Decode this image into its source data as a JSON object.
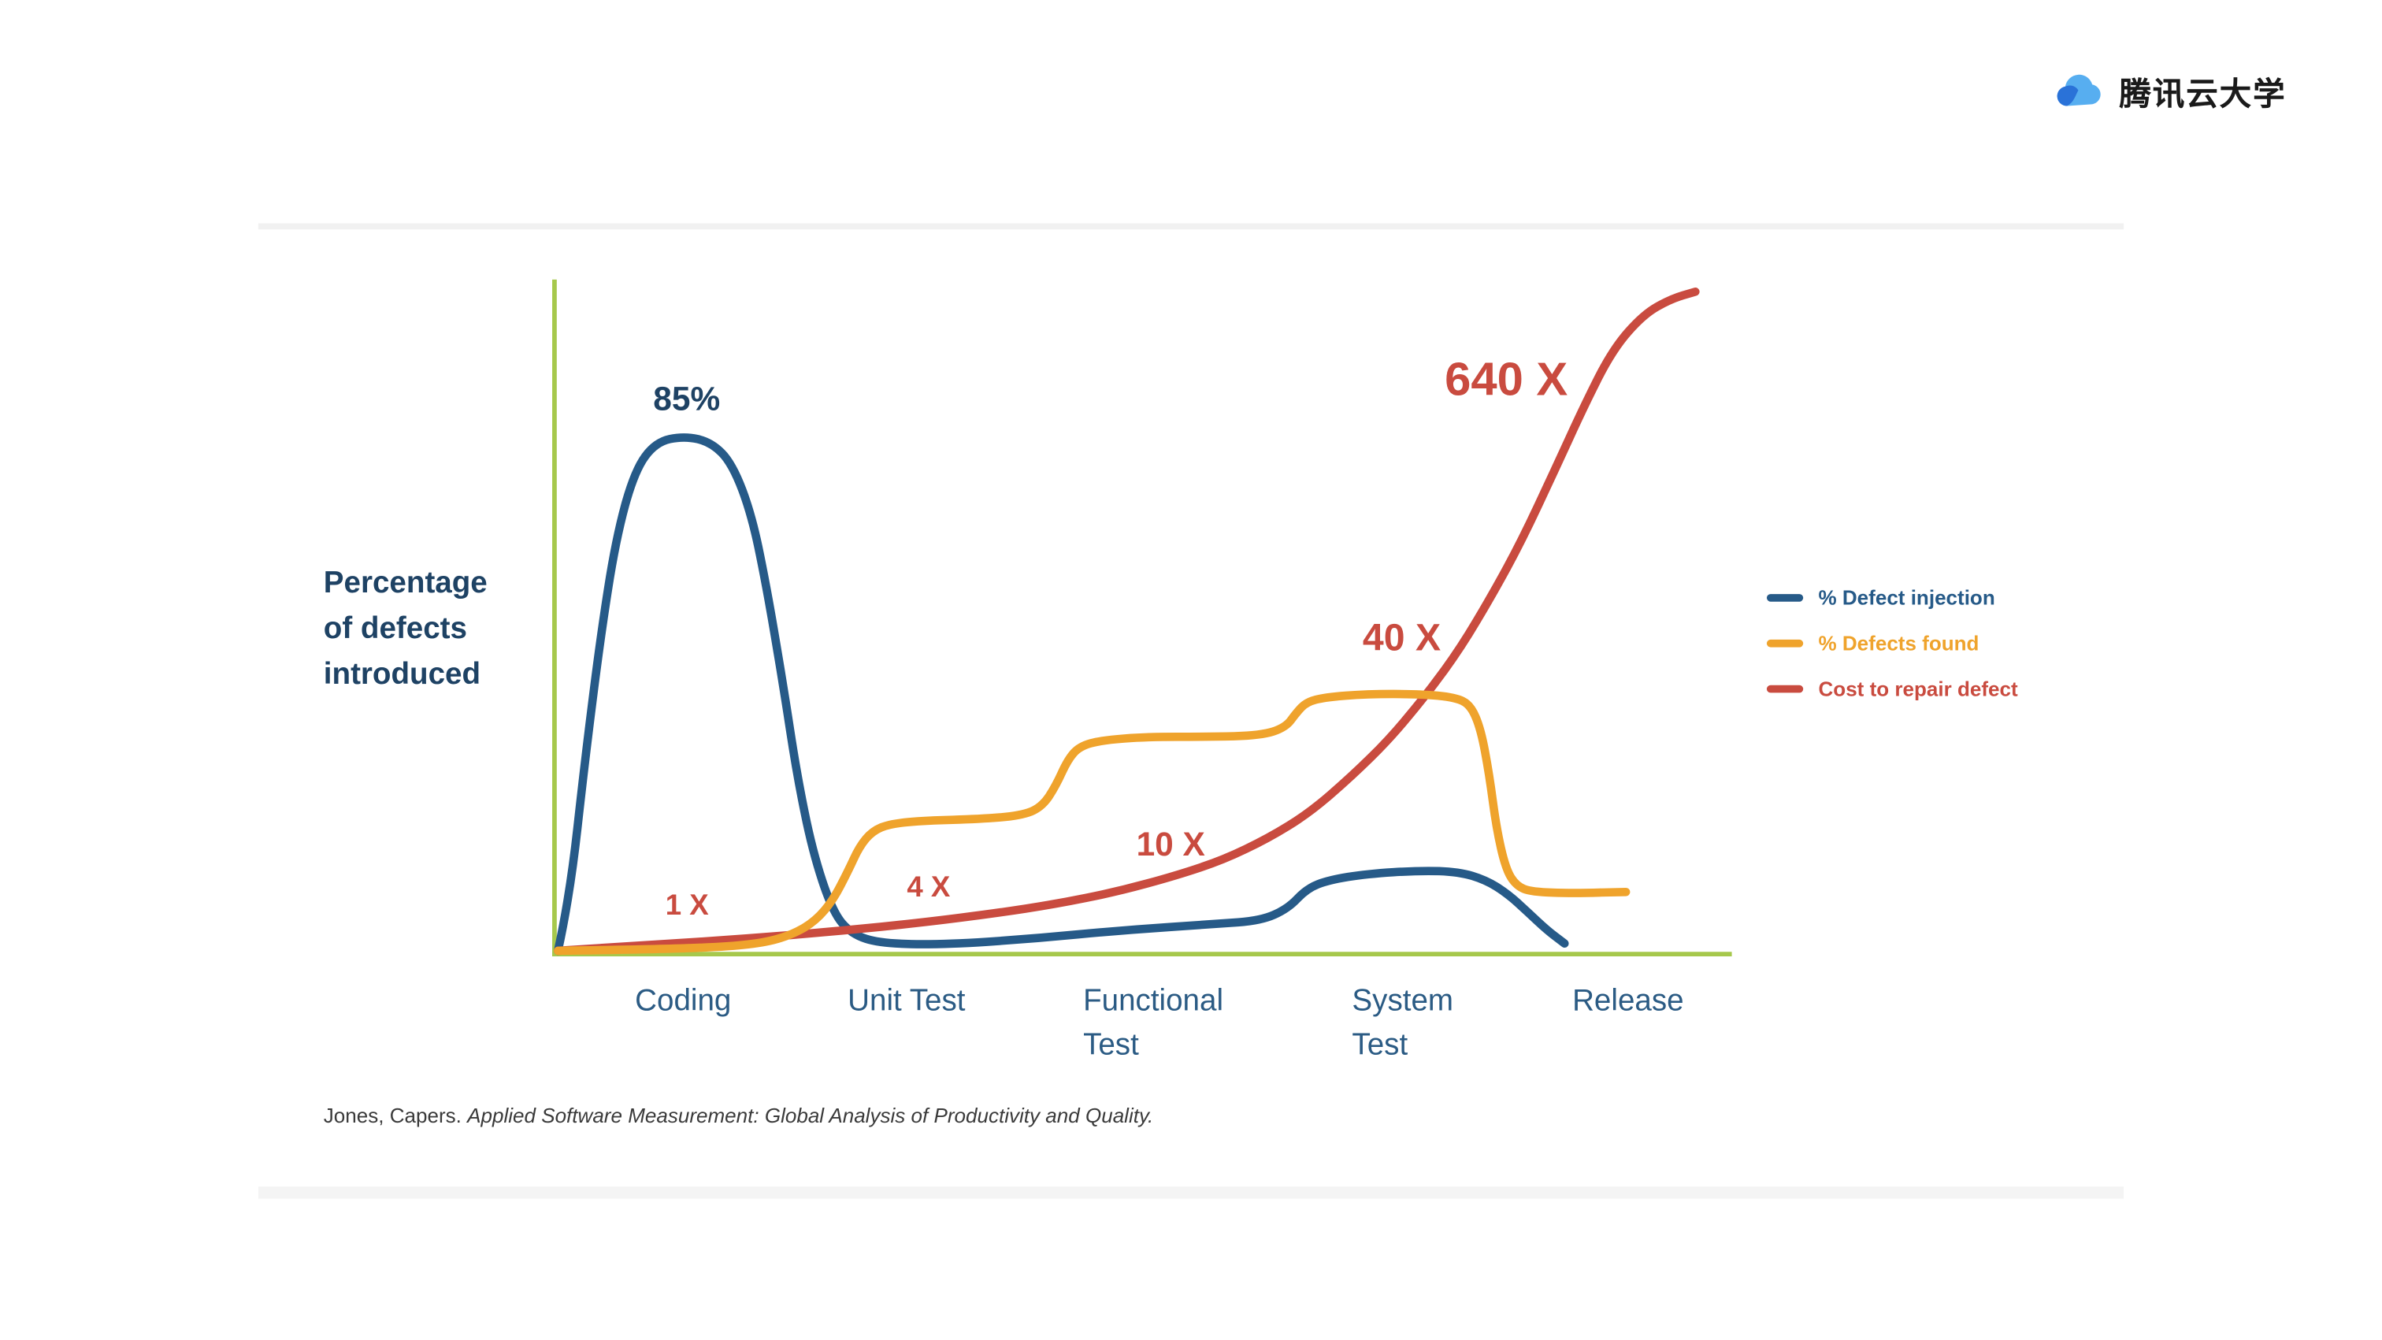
{
  "header": {
    "logo_text": "腾讯云大学"
  },
  "chart_data": {
    "type": "line",
    "title": "",
    "ylabel": "Percentage of defects introduced",
    "ylabel_lines": [
      "Percentage",
      "of defects",
      "introduced"
    ],
    "categories": [
      "Coding",
      "Unit Test",
      "Functional Test",
      "System Test",
      "Release"
    ],
    "axis_color": "#a6c84c",
    "grid": false,
    "legend_position": "right",
    "annotations": [
      {
        "id": "peak-injection",
        "text": "85%",
        "value": 85,
        "unit": "%",
        "series": "% Defect injection",
        "phase": "Coding",
        "color": "#1e4264"
      },
      {
        "id": "cost-1x",
        "text": "1 X",
        "value": 1,
        "unit": "X",
        "series": "Cost to repair defect",
        "phase": "Coding",
        "color": "#c94b3f"
      },
      {
        "id": "cost-4x",
        "text": "4 X",
        "value": 4,
        "unit": "X",
        "series": "Cost to repair defect",
        "phase": "Unit Test",
        "color": "#c94b3f"
      },
      {
        "id": "cost-10x",
        "text": "10 X",
        "value": 10,
        "unit": "X",
        "series": "Cost to repair defect",
        "phase": "Functional Test",
        "color": "#c94b3f"
      },
      {
        "id": "cost-40x",
        "text": "40 X",
        "value": 40,
        "unit": "X",
        "series": "Cost to repair defect",
        "phase": "System Test",
        "color": "#c94b3f"
      },
      {
        "id": "cost-640x",
        "text": "640 X",
        "value": 640,
        "unit": "X",
        "series": "Cost to repair defect",
        "phase": "Release",
        "color": "#c94b3f"
      }
    ],
    "series": [
      {
        "name": "% Defect injection",
        "color": "#265a88",
        "points": [
          [
            0.003,
            0.005
          ],
          [
            0.013,
            0.086
          ],
          [
            0.026,
            0.291
          ],
          [
            0.039,
            0.473
          ],
          [
            0.052,
            0.62
          ],
          [
            0.068,
            0.723
          ],
          [
            0.086,
            0.766
          ],
          [
            0.11,
            0.775
          ],
          [
            0.133,
            0.766
          ],
          [
            0.151,
            0.734
          ],
          [
            0.168,
            0.655
          ],
          [
            0.181,
            0.541
          ],
          [
            0.194,
            0.405
          ],
          [
            0.206,
            0.268
          ],
          [
            0.219,
            0.155
          ],
          [
            0.236,
            0.064
          ],
          [
            0.252,
            0.03
          ],
          [
            0.277,
            0.016
          ],
          [
            0.329,
            0.014
          ],
          [
            0.406,
            0.023
          ],
          [
            0.484,
            0.036
          ],
          [
            0.561,
            0.045
          ],
          [
            0.6,
            0.05
          ],
          [
            0.623,
            0.068
          ],
          [
            0.639,
            0.098
          ],
          [
            0.658,
            0.111
          ],
          [
            0.69,
            0.12
          ],
          [
            0.735,
            0.125
          ],
          [
            0.768,
            0.123
          ],
          [
            0.791,
            0.111
          ],
          [
            0.809,
            0.091
          ],
          [
            0.826,
            0.064
          ],
          [
            0.843,
            0.036
          ],
          [
            0.858,
            0.016
          ]
        ]
      },
      {
        "name": "% Defects found",
        "color": "#efa32c",
        "points": [
          [
            0.003,
            0.005
          ],
          [
            0.084,
            0.007
          ],
          [
            0.148,
            0.011
          ],
          [
            0.181,
            0.018
          ],
          [
            0.203,
            0.03
          ],
          [
            0.222,
            0.05
          ],
          [
            0.237,
            0.082
          ],
          [
            0.249,
            0.123
          ],
          [
            0.259,
            0.161
          ],
          [
            0.27,
            0.184
          ],
          [
            0.285,
            0.195
          ],
          [
            0.316,
            0.2
          ],
          [
            0.361,
            0.202
          ],
          [
            0.396,
            0.207
          ],
          [
            0.414,
            0.22
          ],
          [
            0.426,
            0.252
          ],
          [
            0.436,
            0.291
          ],
          [
            0.446,
            0.311
          ],
          [
            0.465,
            0.32
          ],
          [
            0.503,
            0.325
          ],
          [
            0.555,
            0.325
          ],
          [
            0.6,
            0.327
          ],
          [
            0.621,
            0.339
          ],
          [
            0.63,
            0.361
          ],
          [
            0.639,
            0.377
          ],
          [
            0.654,
            0.384
          ],
          [
            0.69,
            0.389
          ],
          [
            0.735,
            0.389
          ],
          [
            0.765,
            0.384
          ],
          [
            0.778,
            0.373
          ],
          [
            0.787,
            0.336
          ],
          [
            0.794,
            0.268
          ],
          [
            0.8,
            0.189
          ],
          [
            0.808,
            0.127
          ],
          [
            0.817,
            0.102
          ],
          [
            0.83,
            0.093
          ],
          [
            0.865,
            0.091
          ],
          [
            0.91,
            0.093
          ]
        ]
      },
      {
        "name": "Cost to repair defect",
        "color": "#c94b3f",
        "points": [
          [
            0.003,
            0.005
          ],
          [
            0.084,
            0.014
          ],
          [
            0.161,
            0.023
          ],
          [
            0.239,
            0.034
          ],
          [
            0.316,
            0.048
          ],
          [
            0.374,
            0.061
          ],
          [
            0.426,
            0.075
          ],
          [
            0.477,
            0.093
          ],
          [
            0.529,
            0.118
          ],
          [
            0.568,
            0.141
          ],
          [
            0.606,
            0.173
          ],
          [
            0.641,
            0.211
          ],
          [
            0.677,
            0.266
          ],
          [
            0.71,
            0.323
          ],
          [
            0.742,
            0.391
          ],
          [
            0.77,
            0.459
          ],
          [
            0.796,
            0.536
          ],
          [
            0.822,
            0.62
          ],
          [
            0.848,
            0.718
          ],
          [
            0.874,
            0.818
          ],
          [
            0.899,
            0.905
          ],
          [
            0.925,
            0.957
          ],
          [
            0.948,
            0.98
          ],
          [
            0.969,
            0.991
          ]
        ]
      }
    ]
  },
  "legend": {
    "items": [
      {
        "label": "% Defect injection",
        "color": "#265a88"
      },
      {
        "label": "% Defects found",
        "color": "#efa32c"
      },
      {
        "label": "Cost to repair defect",
        "color": "#c94b3f"
      }
    ]
  },
  "citation": {
    "author": "Jones, Capers. ",
    "title": "Applied Software Measurement: Global Analysis of Productivity and Quality."
  }
}
